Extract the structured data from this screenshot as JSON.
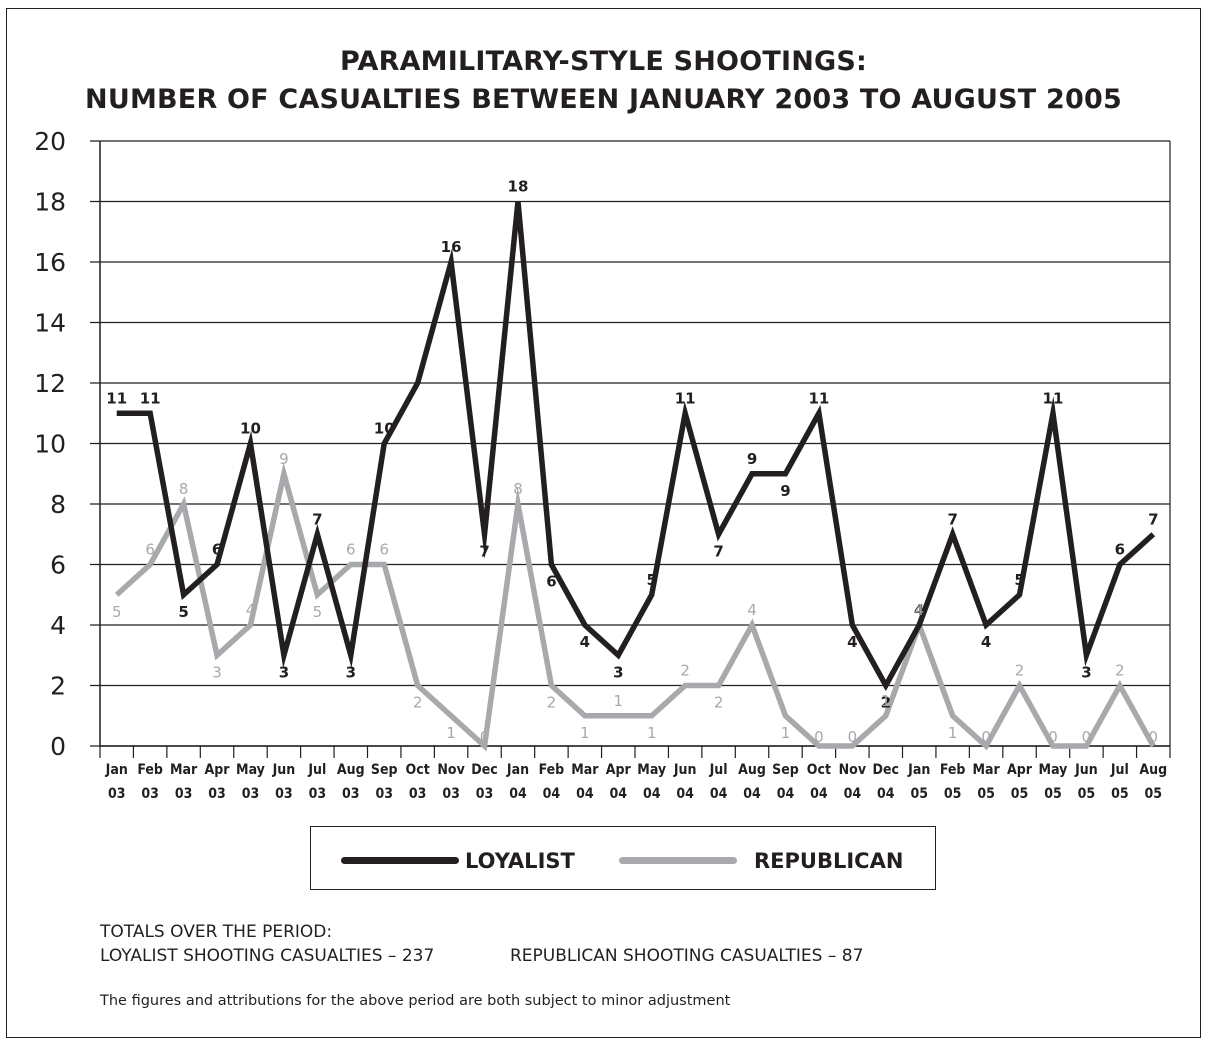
{
  "title_line1": "PARAMILITARY-STYLE SHOOTINGS:",
  "title_line2": "NUMBER OF CASUALTIES BETWEEN JANUARY 2003 TO AUGUST 2005",
  "chart_data": {
    "type": "line",
    "ylim": [
      0,
      20
    ],
    "yticks": [
      0,
      2,
      4,
      6,
      8,
      10,
      12,
      14,
      16,
      18,
      20
    ],
    "grid": "horizontal",
    "categories": [
      "Jan 03",
      "Feb 03",
      "Mar 03",
      "Apr 03",
      "May 03",
      "Jun 03",
      "Jul 03",
      "Aug 03",
      "Sep 03",
      "Oct 03",
      "Nov 03",
      "Dec 03",
      "Jan 04",
      "Feb 04",
      "Mar 04",
      "Apr 04",
      "May 04",
      "Jun 04",
      "Jul 04",
      "Aug 04",
      "Sep 04",
      "Oct 04",
      "Nov 04",
      "Dec 04",
      "Jan 05",
      "Feb 05",
      "Mar 05",
      "Apr 05",
      "May 05",
      "Jun 05",
      "Jul 05",
      "Aug 05"
    ],
    "series": [
      {
        "name": "LOYALIST",
        "color": "#231f20",
        "values": [
          11,
          11,
          5,
          6,
          10,
          3,
          7,
          3,
          10,
          12,
          16,
          7,
          18,
          6,
          4,
          3,
          5,
          11,
          7,
          9,
          9,
          11,
          4,
          2,
          4,
          7,
          4,
          5,
          11,
          3,
          6,
          7
        ],
        "labels": [
          "11",
          "11",
          "5",
          "6",
          "10",
          "3",
          "7",
          "3",
          "10",
          "",
          "16",
          "7",
          "18",
          "6",
          "4",
          "3",
          "5",
          "11",
          "7",
          "9",
          "9",
          "11",
          "4",
          "2",
          "4",
          "7",
          "4",
          "5",
          "11",
          "3",
          "6",
          "7"
        ]
      },
      {
        "name": "REPUBLICAN",
        "color": "#a7a9ac",
        "values": [
          5,
          6,
          8,
          3,
          4,
          9,
          5,
          6,
          6,
          2,
          1,
          0,
          8,
          2,
          1,
          1,
          1,
          2,
          2,
          4,
          1,
          0,
          0,
          1,
          4,
          1,
          0,
          2,
          0,
          0,
          2,
          0
        ],
        "labels": [
          "5",
          "6",
          "8",
          "3",
          "4",
          "9",
          "5",
          "6",
          "6",
          "2",
          "1",
          "0",
          "8",
          "2",
          "1",
          "1",
          "1",
          "2",
          "2",
          "4",
          "1",
          "0",
          "0",
          "1",
          "4",
          "1",
          "0",
          "2",
          "0",
          "0",
          "2",
          "0"
        ]
      }
    ]
  },
  "legend": {
    "loyalist": "LOYALIST",
    "republican": "REPUBLICAN"
  },
  "totals": {
    "heading": "TOTALS OVER THE PERIOD:",
    "loyalist": "LOYALIST SHOOTING CASUALTIES – 237",
    "republican": "REPUBLICAN SHOOTING CASUALTIES – 87"
  },
  "note": "The figures and attributions for the above period are both subject to minor adjustment"
}
